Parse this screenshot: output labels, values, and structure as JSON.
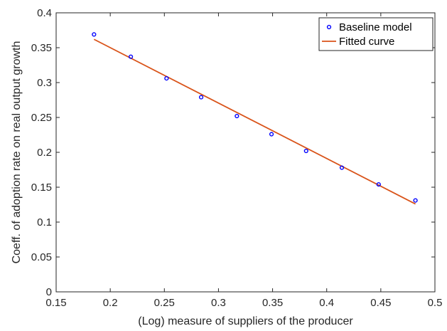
{
  "chart_data": {
    "type": "scatter",
    "title": "",
    "xlabel": "(Log) measure of suppliers of the producer",
    "ylabel": "Coeff. of adoption rate on real output growth",
    "xlim": [
      0.15,
      0.5
    ],
    "ylim": [
      0,
      0.4
    ],
    "xticks": [
      0.15,
      0.2,
      0.25,
      0.3,
      0.35,
      0.4,
      0.45,
      0.5
    ],
    "yticks": [
      0,
      0.05,
      0.1,
      0.15,
      0.2,
      0.25,
      0.3,
      0.35,
      0.4
    ],
    "xtick_labels": [
      "0.15",
      "0.2",
      "0.25",
      "0.3",
      "0.35",
      "0.4",
      "0.45",
      "0.5"
    ],
    "ytick_labels": [
      "0",
      "0.05",
      "0.1",
      "0.15",
      "0.2",
      "0.25",
      "0.3",
      "0.35",
      "0.4"
    ],
    "grid": false,
    "legend_position": "top-right",
    "series": [
      {
        "name": "Baseline model",
        "kind": "markers",
        "color": "#0000ff",
        "x": [
          0.185,
          0.219,
          0.252,
          0.284,
          0.317,
          0.349,
          0.381,
          0.414,
          0.448,
          0.482
        ],
        "y": [
          0.369,
          0.337,
          0.306,
          0.279,
          0.252,
          0.226,
          0.202,
          0.178,
          0.154,
          0.131
        ]
      },
      {
        "name": "Fitted curve",
        "kind": "line",
        "color": "#d95319",
        "x": [
          0.185,
          0.482
        ],
        "y": [
          0.362,
          0.126
        ]
      }
    ]
  }
}
